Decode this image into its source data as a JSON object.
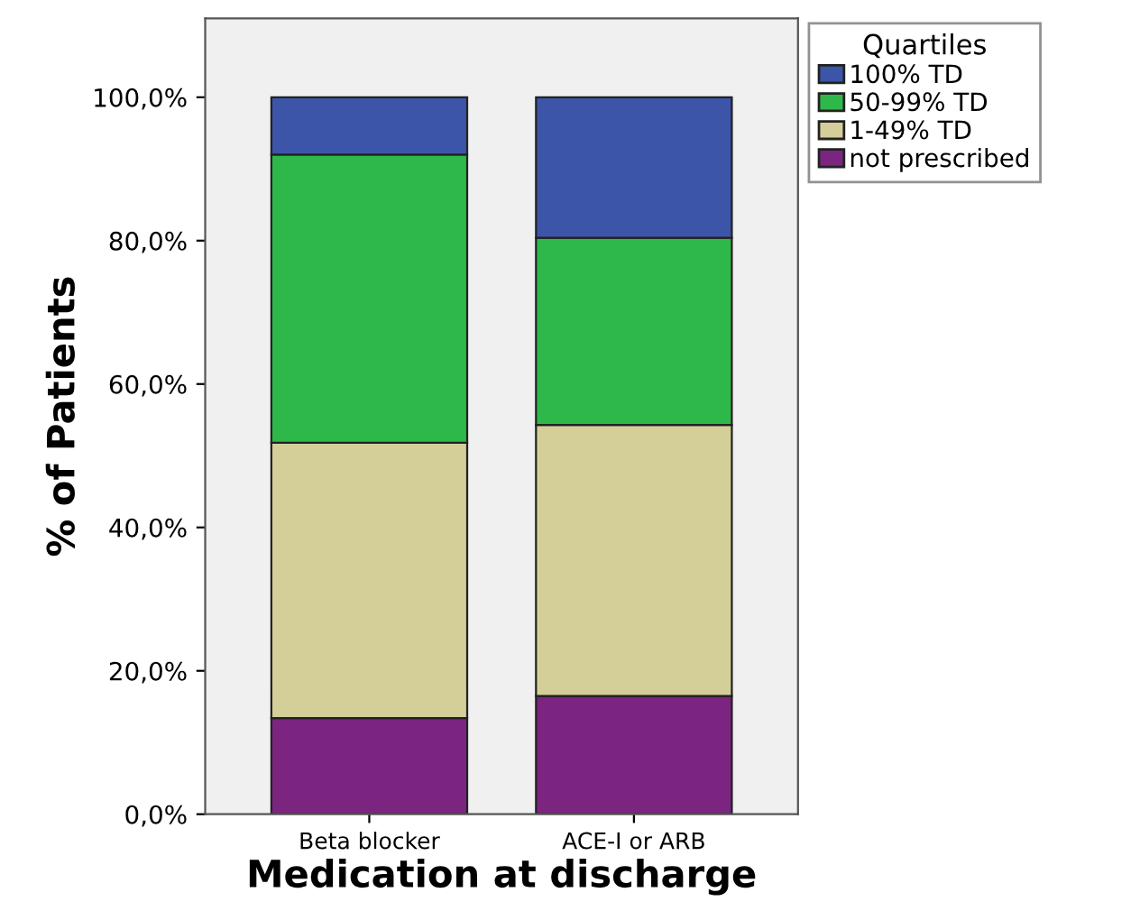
{
  "chart_data": {
    "type": "bar",
    "stacked": true,
    "xlabel": "Medication at discharge",
    "ylabel": "% of Patients",
    "legend_title": "Quartiles",
    "legend": "top right",
    "categories": [
      "Beta blocker",
      "ACE-I or ARB"
    ],
    "series": [
      {
        "name": "not prescribed",
        "color": "#7b2580",
        "values": [
          13.4,
          16.5
        ]
      },
      {
        "name": "1-49% TD",
        "color": "#d4cf98",
        "values": [
          38.4,
          37.8
        ]
      },
      {
        "name": "50-99% TD",
        "color": "#2fb84a",
        "values": [
          40.2,
          26.1
        ]
      },
      {
        "name": "100% TD",
        "color": "#3c55a8",
        "values": [
          8.0,
          19.6
        ]
      }
    ],
    "ylim": [
      0,
      111
    ],
    "yticks": [
      {
        "value": 0,
        "label": "0,0%"
      },
      {
        "value": 20,
        "label": "20,0%"
      },
      {
        "value": 40,
        "label": "40,0%"
      },
      {
        "value": 60,
        "label": "60,0%"
      },
      {
        "value": 80,
        "label": "80,0%"
      },
      {
        "value": 100,
        "label": "100,0%"
      }
    ],
    "grid": false
  }
}
